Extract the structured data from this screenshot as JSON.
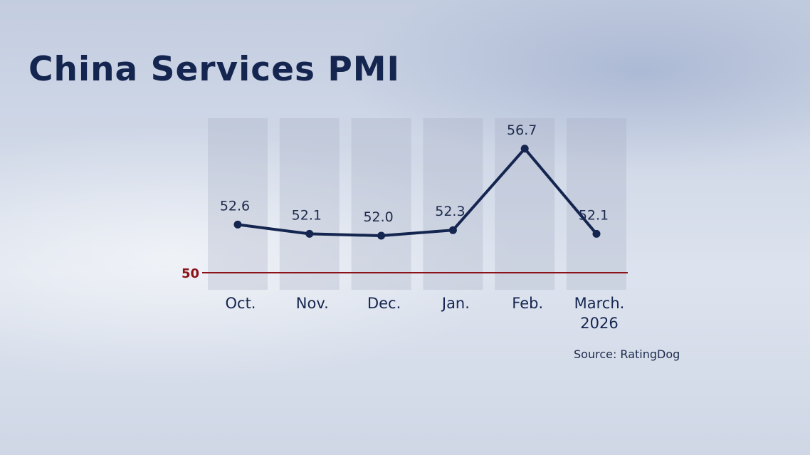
{
  "title": "China Services PMI",
  "source": "Source: RatingDog",
  "chart_data": {
    "type": "line",
    "title": "China Services PMI",
    "categories": [
      [
        "Oct."
      ],
      [
        "Nov."
      ],
      [
        "Dec."
      ],
      [
        "Jan."
      ],
      [
        "Feb."
      ],
      [
        "March.",
        "2026"
      ]
    ],
    "values": [
      52.6,
      52.1,
      52.0,
      52.3,
      56.7,
      52.1
    ],
    "value_labels": [
      "52.6",
      "52.1",
      "52.0",
      "52.3",
      "56.7",
      "52.1"
    ],
    "reference_line": {
      "value": 50,
      "label": "50",
      "color": "#8a1218"
    },
    "ylim": [
      50,
      57.3
    ],
    "line_color": "#14254f",
    "column_color": "#a0aabe",
    "grid": false,
    "legend": "none"
  }
}
